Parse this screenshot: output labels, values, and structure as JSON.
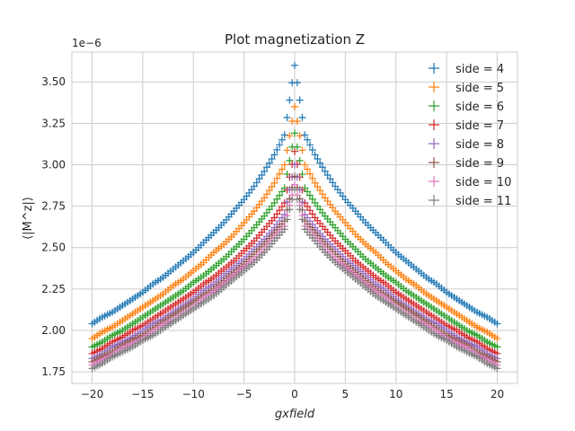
{
  "chart_data": {
    "type": "scatter",
    "title": "Plot magnetization Z",
    "xlabel": "gxfield",
    "ylabel": "⟨|M^z|⟩",
    "y_offset_label": "1e−6",
    "xlim": [
      -22,
      22
    ],
    "ylim": [
      1.68,
      3.68
    ],
    "xticks": [
      -20,
      -15,
      -10,
      -5,
      0,
      5,
      10,
      15,
      20
    ],
    "xtick_labels": [
      "−20",
      "−15",
      "−10",
      "−5",
      "0",
      "5",
      "10",
      "15",
      "20"
    ],
    "yticks": [
      1.75,
      2.0,
      2.25,
      2.5,
      2.75,
      3.0,
      3.25,
      3.5
    ],
    "ytick_labels": [
      "1.75",
      "2.00",
      "2.25",
      "2.50",
      "2.75",
      "3.00",
      "3.25",
      "3.50"
    ],
    "grid": true,
    "legend_position": "top-right",
    "marker": "+",
    "x": [
      -20,
      -19,
      -18,
      -17,
      -16,
      -15,
      -14,
      -13,
      -12,
      -11,
      -10,
      -9,
      -8,
      -7,
      -6,
      -5,
      -4,
      -3,
      -2,
      -1,
      0,
      1,
      2,
      3,
      4,
      5,
      6,
      7,
      8,
      9,
      10,
      11,
      12,
      13,
      14,
      15,
      16,
      17,
      18,
      19,
      20
    ],
    "series": [
      {
        "name": "side = 4",
        "color": "#1f77b4",
        "values": [
          2.04,
          2.08,
          2.11,
          2.15,
          2.19,
          2.23,
          2.28,
          2.32,
          2.37,
          2.42,
          2.47,
          2.53,
          2.59,
          2.65,
          2.72,
          2.79,
          2.87,
          2.96,
          3.06,
          3.18,
          3.6,
          3.18,
          3.06,
          2.96,
          2.87,
          2.79,
          2.72,
          2.65,
          2.59,
          2.53,
          2.47,
          2.42,
          2.37,
          2.32,
          2.28,
          2.23,
          2.19,
          2.15,
          2.11,
          2.08,
          2.04
        ]
      },
      {
        "name": "side = 5",
        "color": "#ff7f0e",
        "values": [
          1.95,
          1.99,
          2.02,
          2.06,
          2.1,
          2.14,
          2.18,
          2.22,
          2.27,
          2.31,
          2.36,
          2.41,
          2.47,
          2.52,
          2.58,
          2.65,
          2.72,
          2.8,
          2.89,
          3.0,
          3.35,
          3.0,
          2.89,
          2.8,
          2.72,
          2.65,
          2.58,
          2.52,
          2.47,
          2.41,
          2.36,
          2.31,
          2.27,
          2.22,
          2.18,
          2.14,
          2.1,
          2.06,
          2.02,
          1.99,
          1.95
        ]
      },
      {
        "name": "side = 6",
        "color": "#2ca02c",
        "values": [
          1.9,
          1.93,
          1.97,
          2.0,
          2.04,
          2.08,
          2.12,
          2.16,
          2.2,
          2.24,
          2.29,
          2.33,
          2.38,
          2.43,
          2.49,
          2.55,
          2.62,
          2.69,
          2.77,
          2.86,
          3.19,
          2.86,
          2.77,
          2.69,
          2.62,
          2.55,
          2.49,
          2.43,
          2.38,
          2.33,
          2.29,
          2.24,
          2.2,
          2.16,
          2.12,
          2.08,
          2.04,
          2.0,
          1.97,
          1.93,
          1.9
        ]
      },
      {
        "name": "side = 7",
        "color": "#d62728",
        "values": [
          1.86,
          1.89,
          1.93,
          1.96,
          2.0,
          2.03,
          2.07,
          2.11,
          2.15,
          2.19,
          2.23,
          2.28,
          2.32,
          2.37,
          2.42,
          2.48,
          2.54,
          2.61,
          2.68,
          2.77,
          3.08,
          2.77,
          2.68,
          2.61,
          2.54,
          2.48,
          2.42,
          2.37,
          2.32,
          2.28,
          2.23,
          2.19,
          2.15,
          2.11,
          2.07,
          2.03,
          2.0,
          1.96,
          1.93,
          1.89,
          1.86
        ]
      },
      {
        "name": "side = 8",
        "color": "#9467bd",
        "values": [
          1.83,
          1.86,
          1.9,
          1.93,
          1.96,
          2.0,
          2.04,
          2.07,
          2.11,
          2.15,
          2.19,
          2.24,
          2.28,
          2.33,
          2.38,
          2.43,
          2.49,
          2.55,
          2.62,
          2.7,
          3.0,
          2.7,
          2.62,
          2.55,
          2.49,
          2.43,
          2.38,
          2.33,
          2.28,
          2.24,
          2.19,
          2.15,
          2.11,
          2.07,
          2.04,
          2.0,
          1.96,
          1.93,
          1.9,
          1.86,
          1.83
        ]
      },
      {
        "name": "side = 9",
        "color": "#8c564b",
        "values": [
          1.81,
          1.84,
          1.87,
          1.91,
          1.94,
          1.97,
          2.01,
          2.05,
          2.09,
          2.13,
          2.17,
          2.21,
          2.25,
          2.3,
          2.35,
          2.4,
          2.46,
          2.52,
          2.59,
          2.66,
          2.93,
          2.66,
          2.59,
          2.52,
          2.46,
          2.4,
          2.35,
          2.3,
          2.25,
          2.21,
          2.17,
          2.13,
          2.09,
          2.05,
          2.01,
          1.97,
          1.94,
          1.91,
          1.87,
          1.84,
          1.81
        ]
      },
      {
        "name": "side = 10",
        "color": "#e377c2",
        "values": [
          1.79,
          1.82,
          1.85,
          1.89,
          1.92,
          1.95,
          1.99,
          2.03,
          2.06,
          2.1,
          2.14,
          2.19,
          2.23,
          2.28,
          2.33,
          2.38,
          2.43,
          2.49,
          2.56,
          2.63,
          2.88,
          2.63,
          2.56,
          2.49,
          2.43,
          2.38,
          2.33,
          2.28,
          2.23,
          2.19,
          2.14,
          2.1,
          2.06,
          2.03,
          1.99,
          1.95,
          1.92,
          1.89,
          1.85,
          1.82,
          1.79
        ]
      },
      {
        "name": "side = 11",
        "color": "#7f7f7f",
        "values": [
          1.77,
          1.8,
          1.84,
          1.87,
          1.9,
          1.94,
          1.97,
          2.01,
          2.05,
          2.09,
          2.13,
          2.17,
          2.21,
          2.26,
          2.31,
          2.36,
          2.41,
          2.47,
          2.54,
          2.61,
          2.85,
          2.61,
          2.54,
          2.47,
          2.41,
          2.36,
          2.31,
          2.26,
          2.21,
          2.17,
          2.13,
          2.09,
          2.05,
          2.01,
          1.97,
          1.94,
          1.9,
          1.87,
          1.84,
          1.8,
          1.77
        ]
      }
    ]
  }
}
